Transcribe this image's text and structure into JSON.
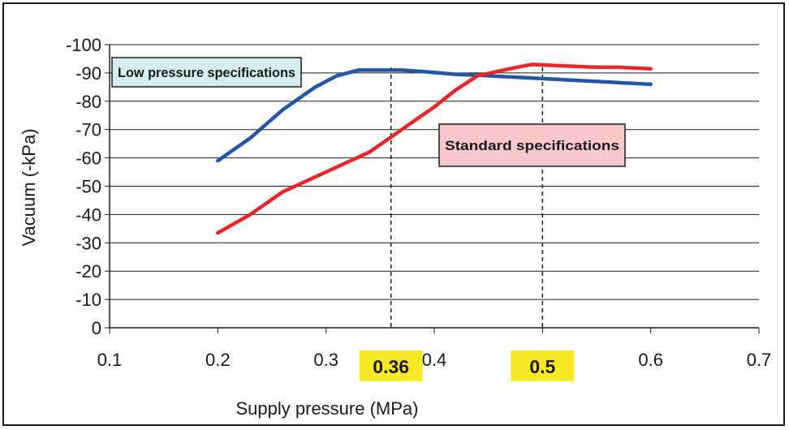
{
  "chart_data": {
    "type": "line",
    "xlabel": "Supply pressure (MPa)",
    "ylabel": "Vacuum (-kPa)",
    "xlim": [
      0.1,
      0.7
    ],
    "ylim": [
      0,
      -100
    ],
    "x_ticks": [
      "0.1",
      "0.2",
      "0.3",
      "0.4",
      "0.5",
      "0.6",
      "0.7"
    ],
    "y_ticks": [
      "-100",
      "-90",
      "-80",
      "-70",
      "-60",
      "-50",
      "-40",
      "-30",
      "-20",
      "-10",
      "0"
    ],
    "grid": "horizontal",
    "series": [
      {
        "name": "Low pressure specifications",
        "color": "#2255a4",
        "x": [
          0.2,
          0.23,
          0.26,
          0.29,
          0.31,
          0.33,
          0.35,
          0.37,
          0.39,
          0.42,
          0.45,
          0.5,
          0.55,
          0.6
        ],
        "y": [
          -59,
          -67,
          -77,
          -85,
          -89,
          -91,
          -91,
          -91,
          -90.5,
          -89.5,
          -89,
          -88,
          -87,
          -86
        ]
      },
      {
        "name": "Standard specifications",
        "color": "#e8262a",
        "x": [
          0.2,
          0.23,
          0.26,
          0.3,
          0.34,
          0.37,
          0.4,
          0.42,
          0.44,
          0.47,
          0.49,
          0.52,
          0.55,
          0.57,
          0.6
        ],
        "y": [
          -33.5,
          -40,
          -48,
          -55,
          -62,
          -70,
          -78,
          -84,
          -89,
          -91.5,
          -93,
          -92.5,
          -92,
          -92,
          -91.5
        ]
      }
    ],
    "reference_lines": [
      {
        "x": 0.36,
        "label": "0.36",
        "highlight": "#f5e92a"
      },
      {
        "x": 0.5,
        "label": "0.5",
        "highlight": "#f5e92a"
      }
    ],
    "callouts": [
      {
        "text": "Low pressure specifications",
        "fill": "#d7eef0"
      },
      {
        "text": "Standard specifications",
        "fill": "#f8c8cc"
      }
    ]
  }
}
